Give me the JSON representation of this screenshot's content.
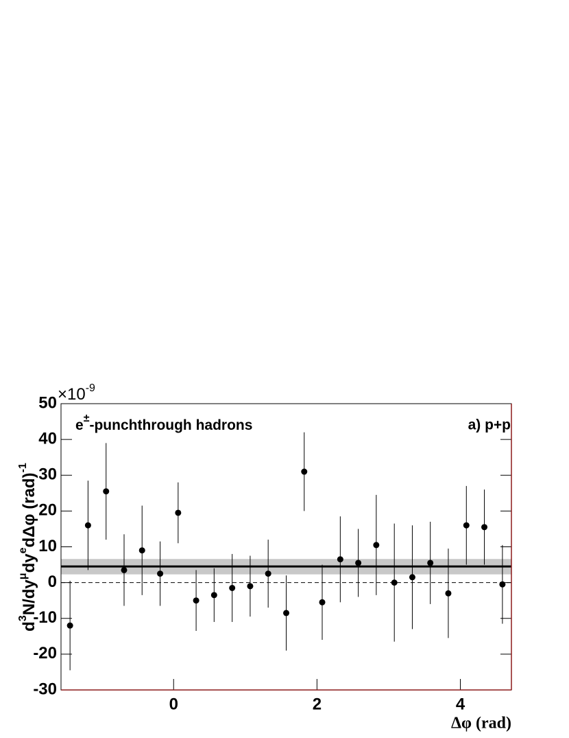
{
  "chart_data": {
    "type": "errorbar",
    "ylabel": [
      "d",
      "3",
      "N/dy",
      "μ",
      "dy",
      "e",
      "dΔφ (rad)",
      "-1"
    ],
    "xlabel": "Δφ (rad)",
    "y_multiplier": [
      "×10",
      "-9"
    ],
    "annotation_left": [
      "e",
      "±",
      "-punchthrough hadrons"
    ],
    "annotation_right": "a) p+p",
    "xlim": [
      -1.5708,
      4.7124
    ],
    "ylim": [
      -30,
      50
    ],
    "xticks": [
      0,
      2,
      4
    ],
    "yticks": [
      -30,
      -20,
      -10,
      0,
      10,
      20,
      30,
      40,
      50
    ],
    "series": [
      {
        "color": "#000000",
        "x": [
          -1.445,
          -1.194,
          -0.942,
          -0.691,
          -0.44,
          -0.188,
          0.063,
          0.314,
          0.565,
          0.817,
          1.068,
          1.319,
          1.571,
          1.822,
          2.073,
          2.325,
          2.576,
          2.827,
          3.079,
          3.33,
          3.581,
          3.832,
          4.084,
          4.335,
          4.587
        ],
        "values": [
          -12,
          16,
          25.5,
          3.5,
          9,
          2.5,
          19.5,
          -5,
          -3.5,
          -1.5,
          -1,
          2.5,
          -8.5,
          31,
          -5.5,
          6.5,
          5.5,
          10.5,
          0,
          1.5,
          5.5,
          -3,
          16,
          15.5,
          -0.5
        ],
        "errors": [
          12.5,
          12.5,
          13.5,
          10,
          12.5,
          9,
          8.5,
          8.5,
          7.5,
          9.5,
          8.5,
          9.5,
          10.5,
          11,
          10.5,
          12,
          9.5,
          14,
          16.5,
          14.5,
          11.5,
          12.5,
          11,
          10.5,
          11
        ]
      }
    ],
    "fit_value": 4.5,
    "fit_band": [
      2.3,
      6.6
    ],
    "fit_band_color": "#c8c8c8",
    "zero_line": 0
  }
}
